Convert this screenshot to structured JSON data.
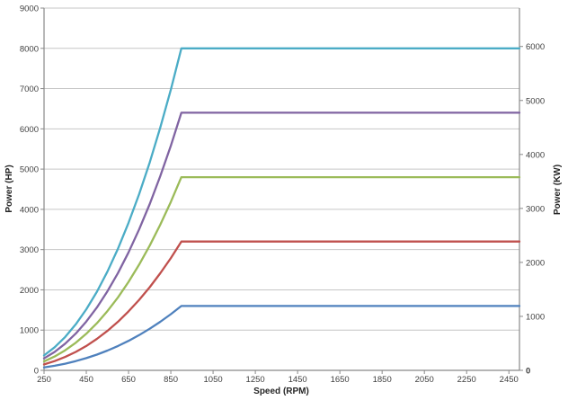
{
  "chart_data": {
    "type": "line",
    "title": "",
    "xlabel": "Speed (RPM)",
    "ylabel_left": "Power (HP)",
    "ylabel_right": "Power (KW)",
    "legend": "none",
    "grid": "horizontal",
    "x_axis": {
      "min": 250,
      "max": 2500,
      "ticks": [
        250,
        450,
        650,
        850,
        1050,
        1250,
        1450,
        1650,
        1850,
        2050,
        2250,
        2450
      ]
    },
    "y_axis_left": {
      "min": 0,
      "max": 9000,
      "ticks": [
        0,
        1000,
        2000,
        3000,
        4000,
        5000,
        6000,
        7000,
        8000,
        9000
      ]
    },
    "y_axis_right": {
      "ticks": [
        0,
        1000,
        2000,
        3000,
        4000,
        5000,
        6000
      ],
      "hp_per_kw": 1.34102,
      "bold_zero": true
    },
    "x": [
      250,
      300,
      350,
      400,
      450,
      500,
      550,
      600,
      650,
      700,
      750,
      800,
      850,
      900,
      2500
    ],
    "series": [
      {
        "name": "blue",
        "plateau_hp": 1600,
        "color": "#4F81BD",
        "values": [
          74,
          115,
          166,
          229,
          303,
          390,
          491,
          605,
          733,
          875,
          1033,
          1206,
          1395,
          1600,
          1600
        ]
      },
      {
        "name": "red",
        "plateau_hp": 3200,
        "color": "#C0504D",
        "values": [
          148,
          229,
          332,
          457,
          606,
          781,
          981,
          1209,
          1465,
          1751,
          2066,
          2412,
          2790,
          3200,
          3200
        ]
      },
      {
        "name": "green",
        "plateau_hp": 4800,
        "color": "#9BBB59",
        "values": [
          222,
          344,
          497,
          686,
          909,
          1171,
          1472,
          1814,
          2198,
          2626,
          3099,
          3618,
          4185,
          4800,
          4800
        ]
      },
      {
        "name": "purple",
        "plateau_hp": 6400,
        "color": "#8064A2",
        "values": [
          296,
          458,
          663,
          914,
          1213,
          1562,
          1963,
          2418,
          2931,
          3501,
          4132,
          4824,
          5580,
          6400,
          6400
        ]
      },
      {
        "name": "teal",
        "plateau_hp": 8000,
        "color": "#4BACC6",
        "values": [
          370,
          573,
          829,
          1143,
          1516,
          1952,
          2453,
          3023,
          3664,
          4377,
          5165,
          6030,
          6974,
          8000,
          8000
        ]
      }
    ],
    "colors": {
      "gridline": "#C6C6C6",
      "axis_line": "#898989",
      "tick_text": "#3F3F3F"
    }
  }
}
